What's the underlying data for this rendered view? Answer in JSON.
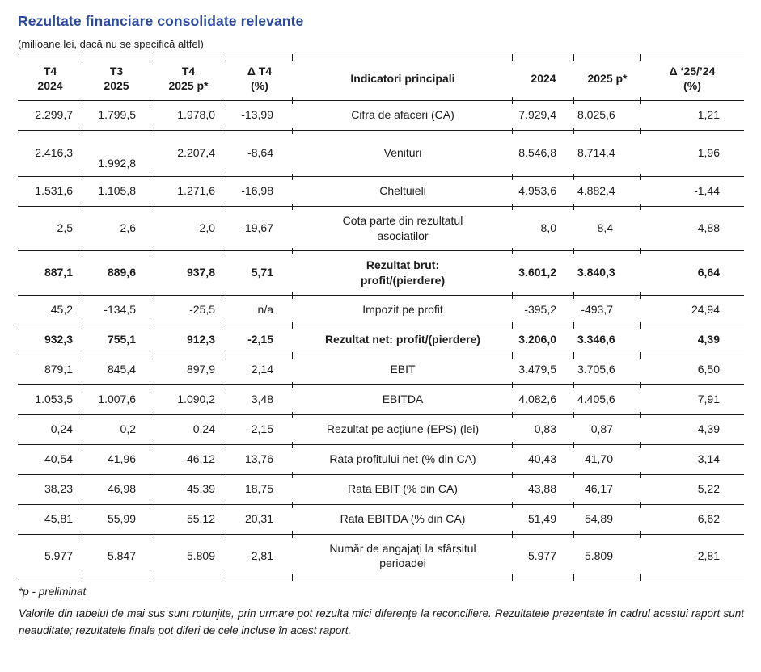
{
  "title": "Rezultate financiare consolidate relevante",
  "subtitle": "(milioane lei, dacă nu se specifică altfel)",
  "accent_color": "#2b4a9e",
  "text_color": "#1b1b1b",
  "table": {
    "headers": [
      "T4\n2024",
      "T3\n2025",
      "T4\n2025 p*",
      "Δ T4\n(%)",
      "Indicatori principali",
      "2024",
      "2025 p*",
      "Δ ‘25/’24\n(%)"
    ],
    "rows": [
      {
        "t4_2024": "2.299,7",
        "t3_2025": "1.799,5",
        "t4_2025p": "1.978,0",
        "delta_t4": "-13,99",
        "indicator": "Cifra de afaceri (CA)",
        "fy2024": "7.929,4",
        "fy2025p": "8.025,6",
        "delta_fy": "1,21",
        "bold": false,
        "t3_low": false
      },
      {
        "t4_2024": "2.416,3",
        "t3_2025": "1.992,8",
        "t4_2025p": "2.207,4",
        "delta_t4": "-8,64",
        "indicator": "Venituri",
        "fy2024": "8.546,8",
        "fy2025p": "8.714,4",
        "delta_fy": "1,96",
        "bold": false,
        "t3_low": true
      },
      {
        "t4_2024": "1.531,6",
        "t3_2025": "1.105,8",
        "t4_2025p": "1.271,6",
        "delta_t4": "-16,98",
        "indicator": "Cheltuieli",
        "fy2024": "4.953,6",
        "fy2025p": "4.882,4",
        "delta_fy": "-1,44",
        "bold": false,
        "t3_low": false
      },
      {
        "t4_2024": "2,5",
        "t3_2025": "2,6",
        "t4_2025p": "2,0",
        "delta_t4": "-19,67",
        "indicator": "Cota parte din rezultatul\nasociaților",
        "fy2024": "8,0",
        "fy2025p": "8,4",
        "delta_fy": "4,88",
        "bold": false,
        "t3_low": false
      },
      {
        "t4_2024": "887,1",
        "t3_2025": "889,6",
        "t4_2025p": "937,8",
        "delta_t4": "5,71",
        "indicator": "Rezultat brut:\nprofit/(pierdere)",
        "fy2024": "3.601,2",
        "fy2025p": "3.840,3",
        "delta_fy": "6,64",
        "bold": true,
        "t3_low": false
      },
      {
        "t4_2024": "45,2",
        "t3_2025": "-134,5",
        "t4_2025p": "-25,5",
        "delta_t4": "n/a",
        "indicator": "Impozit pe profit",
        "fy2024": "-395,2",
        "fy2025p": "-493,7",
        "delta_fy": "24,94",
        "bold": false,
        "t3_low": false
      },
      {
        "t4_2024": "932,3",
        "t3_2025": "755,1",
        "t4_2025p": "912,3",
        "delta_t4": "-2,15",
        "indicator": "Rezultat net: profit/(pierdere)",
        "fy2024": "3.206,0",
        "fy2025p": "3.346,6",
        "delta_fy": "4,39",
        "bold": true,
        "t3_low": false
      },
      {
        "t4_2024": "879,1",
        "t3_2025": "845,4",
        "t4_2025p": "897,9",
        "delta_t4": "2,14",
        "indicator": "EBIT",
        "fy2024": "3.479,5",
        "fy2025p": "3.705,6",
        "delta_fy": "6,50",
        "bold": false,
        "t3_low": false
      },
      {
        "t4_2024": "1.053,5",
        "t3_2025": "1.007,6",
        "t4_2025p": "1.090,2",
        "delta_t4": "3,48",
        "indicator": "EBITDA",
        "fy2024": "4.082,6",
        "fy2025p": "4.405,6",
        "delta_fy": "7,91",
        "bold": false,
        "t3_low": false
      },
      {
        "t4_2024": "0,24",
        "t3_2025": "0,2",
        "t4_2025p": "0,24",
        "delta_t4": "-2,15",
        "indicator": "Rezultat pe acțiune (EPS) (lei)",
        "fy2024": "0,83",
        "fy2025p": "0,87",
        "delta_fy": "4,39",
        "bold": false,
        "t3_low": false
      },
      {
        "t4_2024": "40,54",
        "t3_2025": "41,96",
        "t4_2025p": "46,12",
        "delta_t4": "13,76",
        "indicator": "Rata profitului net (% din CA)",
        "fy2024": "40,43",
        "fy2025p": "41,70",
        "delta_fy": "3,14",
        "bold": false,
        "t3_low": false
      },
      {
        "t4_2024": "38,23",
        "t3_2025": "46,98",
        "t4_2025p": "45,39",
        "delta_t4": "18,75",
        "indicator": "Rata EBIT (% din CA)",
        "fy2024": "43,88",
        "fy2025p": "46,17",
        "delta_fy": "5,22",
        "bold": false,
        "t3_low": false
      },
      {
        "t4_2024": "45,81",
        "t3_2025": "55,99",
        "t4_2025p": "55,12",
        "delta_t4": "20,31",
        "indicator": "Rata EBITDA (% din CA)",
        "fy2024": "51,49",
        "fy2025p": "54,89",
        "delta_fy": "6,62",
        "bold": false,
        "t3_low": false
      },
      {
        "t4_2024": "5.977",
        "t3_2025": "5.847",
        "t4_2025p": "5.809",
        "delta_t4": "-2,81",
        "indicator": "Număr de angajați la sfârșitul\nperioadei",
        "fy2024": "5.977",
        "fy2025p": "5.809",
        "delta_fy": "-2,81",
        "bold": false,
        "t3_low": false
      }
    ]
  },
  "footnotes": {
    "preliminary": "*p - preliminat",
    "disclaimer": "Valorile din tabelul de mai sus sunt rotunjite, prin urmare pot rezulta mici diferențe la reconciliere. Rezultatele prezentate în cadrul acestui raport sunt neauditate; rezultatele finale pot diferi de cele incluse în acest raport."
  }
}
